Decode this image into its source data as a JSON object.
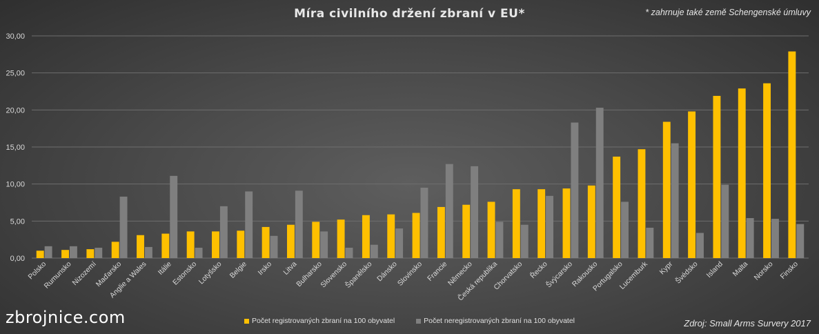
{
  "chart_data": {
    "type": "bar",
    "title": "Míra civilního držení zbraní v EU*",
    "note": "* zahrnuje také země Schengenské úmluvy",
    "categories": [
      "Polsko",
      "Rumunsko",
      "Nizozemí",
      "Maďarsko",
      "Anglie a Wales",
      "Itálie",
      "Estonsko",
      "Lotyšsko",
      "Belgie",
      "Irsko",
      "Litva",
      "Bulharsko",
      "Slovensko",
      "Španělsko",
      "Dánsko",
      "Slovinsko",
      "Francie",
      "Německo",
      "Česká republika",
      "Chorvatsko",
      "Řecko",
      "Švýcarsko",
      "Rakousko",
      "Portugalsko",
      "Lucemburk",
      "Kypr",
      "Švédsko",
      "Island",
      "Malta",
      "Norsko",
      "Finsko"
    ],
    "series": [
      {
        "name": "Počet registrovaných zbraní na 100 obyvatel",
        "color": "#ffc000",
        "values": [
          1.0,
          1.1,
          1.2,
          2.2,
          3.1,
          3.3,
          3.6,
          3.6,
          3.7,
          4.2,
          4.5,
          4.9,
          5.2,
          5.8,
          5.9,
          6.1,
          6.9,
          7.2,
          7.6,
          9.3,
          9.3,
          9.4,
          9.8,
          13.7,
          14.7,
          18.4,
          19.8,
          21.9,
          22.9,
          23.6,
          27.9
        ]
      },
      {
        "name": "Počet neregistrovaných zbraní na 100 obyvatel",
        "color": "#7f7f7f",
        "values": [
          1.6,
          1.6,
          1.4,
          8.3,
          1.5,
          11.1,
          1.4,
          7.0,
          9.0,
          3.0,
          9.1,
          3.6,
          1.4,
          1.8,
          4.0,
          9.5,
          12.7,
          12.4,
          4.9,
          4.5,
          8.4,
          18.3,
          20.3,
          7.6,
          4.1,
          15.5,
          3.4,
          9.9,
          5.4,
          5.3,
          4.6
        ]
      }
    ],
    "ylim": [
      0,
      30
    ],
    "yticks": [
      "0,00",
      "5,00",
      "10,00",
      "15,00",
      "20,00",
      "25,00",
      "30,00"
    ],
    "xlabel": "",
    "ylabel": ""
  },
  "footer": {
    "site": "zbrojnice.com",
    "source": "Zdroj: Small Arms Survery 2017"
  },
  "colors": {
    "registered": "#ffc000",
    "unregistered": "#7f7f7f",
    "grid": "#6e6e6e"
  }
}
